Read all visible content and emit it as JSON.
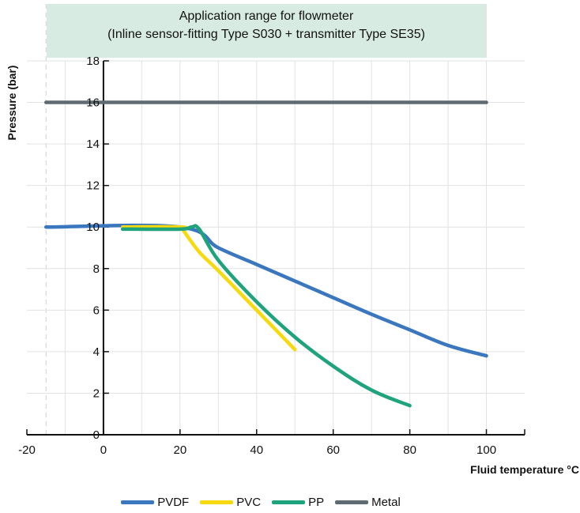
{
  "chart_data": {
    "type": "line",
    "title": "Application range for flowmeter",
    "subtitle": "(Inline sensor-fitting Type S030 + transmitter Type SE35)",
    "xlabel": "Fluid temperature °C",
    "ylabel": "Pressure (bar)",
    "xlim": [
      -20,
      110
    ],
    "ylim": [
      0,
      18
    ],
    "xticks": [
      -20,
      0,
      20,
      40,
      60,
      80,
      100
    ],
    "yticks": [
      0,
      2,
      4,
      6,
      8,
      10,
      12,
      14,
      16,
      18
    ],
    "grid": true,
    "legend_position": "bottom",
    "title_background": "#d8ebe3",
    "series": [
      {
        "name": "PVDF",
        "color": "#3a77be",
        "points": [
          [
            -15,
            10
          ],
          [
            20,
            10
          ],
          [
            30,
            9.0
          ],
          [
            40,
            8.2
          ],
          [
            50,
            7.4
          ],
          [
            60,
            6.6
          ],
          [
            70,
            5.8
          ],
          [
            80,
            5.05
          ],
          [
            90,
            4.3
          ],
          [
            100,
            3.8
          ]
        ]
      },
      {
        "name": "PVC",
        "color": "#f7d90f",
        "points": [
          [
            5,
            10
          ],
          [
            20,
            10
          ],
          [
            21,
            9.8
          ],
          [
            25,
            8.8
          ],
          [
            30,
            7.9
          ],
          [
            40,
            6.0
          ],
          [
            50,
            4.1
          ]
        ]
      },
      {
        "name": "PP",
        "color": "#1fa37d",
        "points": [
          [
            5,
            9.9
          ],
          [
            20,
            9.9
          ],
          [
            23,
            10
          ],
          [
            25,
            9.9
          ],
          [
            30,
            8.4
          ],
          [
            40,
            6.4
          ],
          [
            50,
            4.7
          ],
          [
            60,
            3.3
          ],
          [
            70,
            2.15
          ],
          [
            80,
            1.4
          ]
        ]
      },
      {
        "name": "Metal",
        "color": "#5f6b72",
        "points": [
          [
            -15,
            16
          ],
          [
            100,
            16
          ]
        ]
      }
    ]
  }
}
